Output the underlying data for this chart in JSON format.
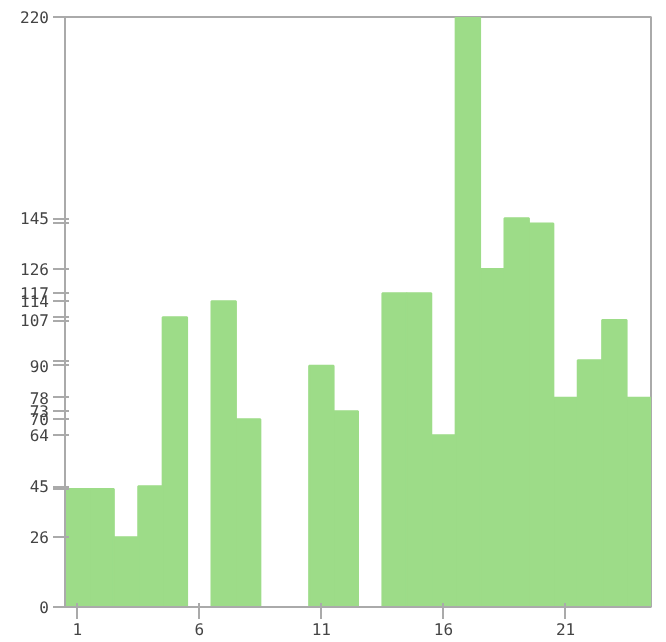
{
  "chart_data": {
    "type": "bar",
    "categories": [
      "1",
      null,
      null,
      null,
      null,
      "6",
      null,
      null,
      null,
      null,
      "11",
      null,
      null,
      null,
      null,
      "16",
      null,
      null,
      null,
      null,
      "21",
      null,
      null,
      null
    ],
    "values": [
      44,
      44,
      26,
      45,
      108,
      0,
      114,
      70,
      0,
      0,
      90,
      73,
      0,
      117,
      117,
      64,
      220,
      126,
      145,
      143,
      78,
      92,
      107,
      78
    ],
    "color": "#9ddc88",
    "ylim": [
      0,
      220
    ],
    "yticks": [
      0,
      26,
      {
        "value": 44,
        "label": null
      },
      45,
      64,
      70,
      73,
      78,
      90,
      {
        "value": 92,
        "label": null
      },
      107,
      {
        "value": 108,
        "label": null
      },
      114,
      117,
      126,
      {
        "value": 143,
        "label": null
      },
      145,
      220
    ],
    "grid": false
  }
}
